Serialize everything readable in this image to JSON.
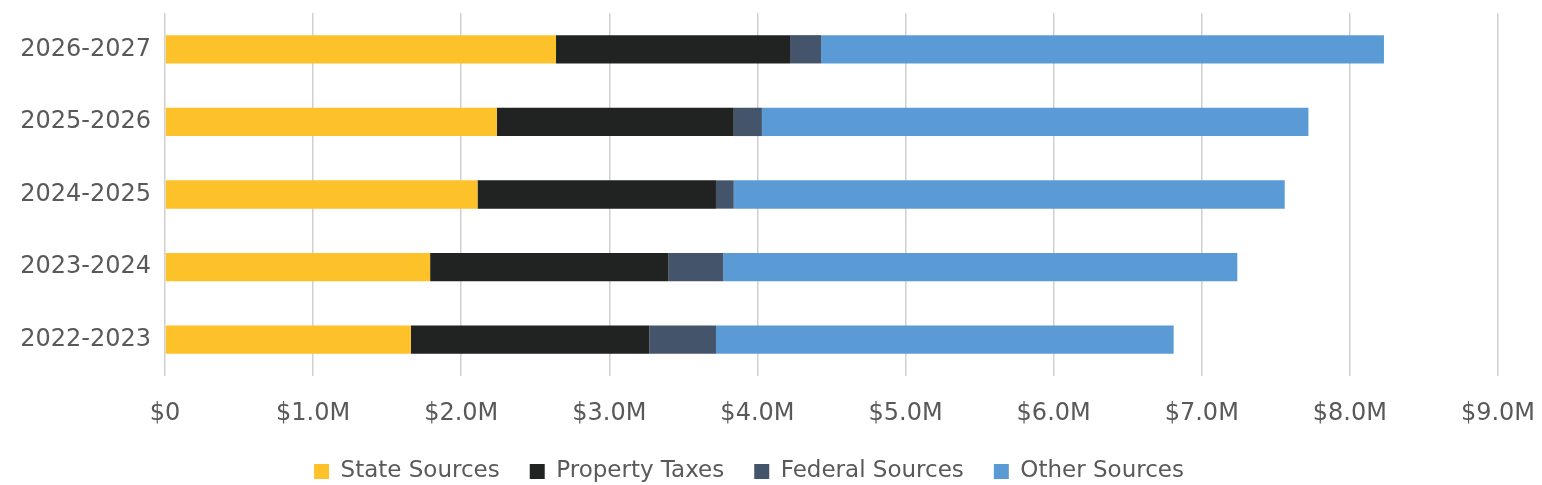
{
  "chart_data": {
    "type": "bar",
    "orientation": "horizontal",
    "stacked": true,
    "categories": [
      "2026-2027",
      "2025-2026",
      "2024-2025",
      "2023-2024",
      "2022-2023"
    ],
    "series": [
      {
        "name": "State Sources",
        "color": "#fdc12a",
        "values": [
          2.64,
          2.24,
          2.11,
          1.79,
          1.66
        ]
      },
      {
        "name": "Property Taxes",
        "color": "#212322",
        "values": [
          1.58,
          1.6,
          1.61,
          1.61,
          1.61
        ]
      },
      {
        "name": "Federal Sources",
        "color": "#44546a",
        "values": [
          0.21,
          0.19,
          0.12,
          0.37,
          0.45
        ]
      },
      {
        "name": "Other Sources",
        "color": "#5b9bd5",
        "values": [
          3.8,
          3.69,
          3.72,
          3.47,
          3.09
        ]
      }
    ],
    "xlim": [
      0,
      9
    ],
    "xticks": [
      {
        "value": 0,
        "label": "$0"
      },
      {
        "value": 1,
        "label": "$1.0M"
      },
      {
        "value": 2,
        "label": "$2.0M"
      },
      {
        "value": 3,
        "label": "$3.0M"
      },
      {
        "value": 4,
        "label": "$4.0M"
      },
      {
        "value": 5,
        "label": "$5.0M"
      },
      {
        "value": 6,
        "label": "$6.0M"
      },
      {
        "value": 7,
        "label": "$7.0M"
      },
      {
        "value": 8,
        "label": "$8.0M"
      },
      {
        "value": 9,
        "label": "$9.0M"
      }
    ],
    "grid": "x",
    "legend": "bottom"
  }
}
